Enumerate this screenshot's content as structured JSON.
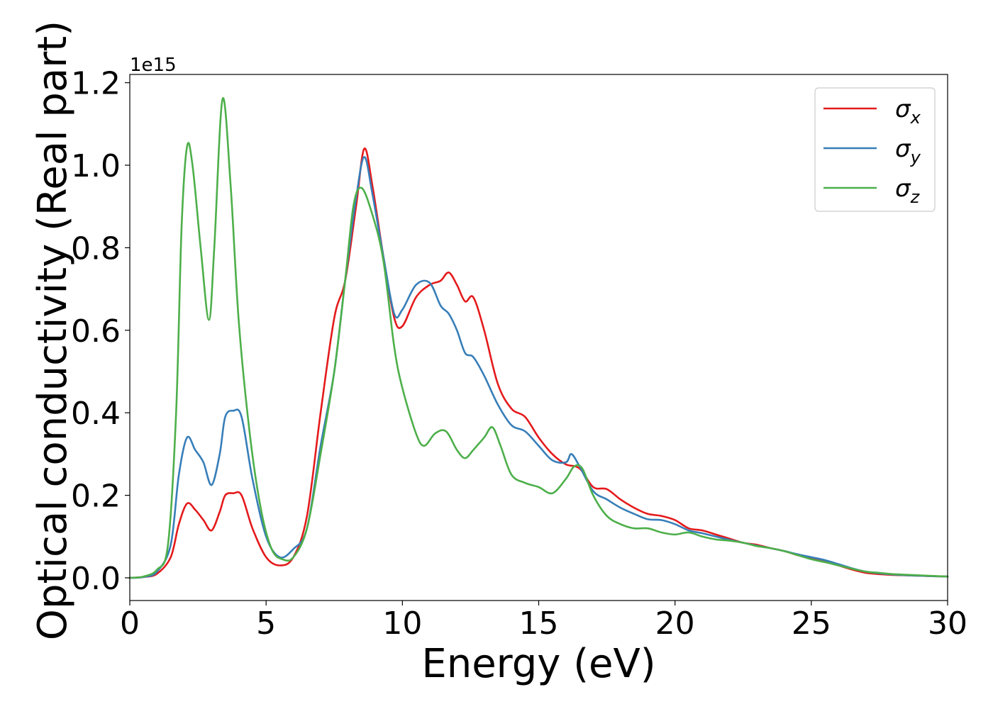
{
  "chart_data": {
    "type": "line",
    "xlabel": "Energy (eV)",
    "ylabel": "Optical conductivity (Real part)",
    "offset_text": "1e15",
    "xlim": [
      0,
      30
    ],
    "ylim": [
      -0.055,
      1.22
    ],
    "x_ticks": [
      0,
      5,
      10,
      15,
      20,
      25,
      30
    ],
    "x_tick_labels": [
      "0",
      "5",
      "10",
      "15",
      "20",
      "25",
      "30"
    ],
    "y_ticks": [
      0.0,
      0.2,
      0.4,
      0.6,
      0.8,
      1.0,
      1.2
    ],
    "y_tick_labels": [
      "0.0",
      "0.2",
      "0.4",
      "0.6",
      "0.8",
      "1.0",
      "1.2"
    ],
    "grid": false,
    "legend_position": "top-right",
    "series": [
      {
        "name": "σ",
        "subscript": "x",
        "color": "#e41a1c",
        "points": [
          [
            0,
            0
          ],
          [
            0.5,
            0.002
          ],
          [
            1,
            0.01
          ],
          [
            1.5,
            0.05
          ],
          [
            1.8,
            0.13
          ],
          [
            2.1,
            0.18
          ],
          [
            2.4,
            0.165
          ],
          [
            2.7,
            0.14
          ],
          [
            3.0,
            0.115
          ],
          [
            3.3,
            0.16
          ],
          [
            3.5,
            0.2
          ],
          [
            3.8,
            0.205
          ],
          [
            4.1,
            0.2
          ],
          [
            4.5,
            0.12
          ],
          [
            5.0,
            0.05
          ],
          [
            5.5,
            0.03
          ],
          [
            6.0,
            0.05
          ],
          [
            6.5,
            0.15
          ],
          [
            7.0,
            0.4
          ],
          [
            7.5,
            0.63
          ],
          [
            7.9,
            0.72
          ],
          [
            8.3,
            0.9
          ],
          [
            8.6,
            1.04
          ],
          [
            8.9,
            0.95
          ],
          [
            9.3,
            0.78
          ],
          [
            9.7,
            0.63
          ],
          [
            10.0,
            0.61
          ],
          [
            10.5,
            0.68
          ],
          [
            11.0,
            0.71
          ],
          [
            11.4,
            0.72
          ],
          [
            11.7,
            0.74
          ],
          [
            12.0,
            0.71
          ],
          [
            12.3,
            0.67
          ],
          [
            12.6,
            0.68
          ],
          [
            13.0,
            0.6
          ],
          [
            13.5,
            0.47
          ],
          [
            14.0,
            0.41
          ],
          [
            14.5,
            0.39
          ],
          [
            15.0,
            0.34
          ],
          [
            15.5,
            0.3
          ],
          [
            16.0,
            0.275
          ],
          [
            16.5,
            0.265
          ],
          [
            17.0,
            0.22
          ],
          [
            17.5,
            0.215
          ],
          [
            18.0,
            0.19
          ],
          [
            18.5,
            0.17
          ],
          [
            19.0,
            0.155
          ],
          [
            19.5,
            0.15
          ],
          [
            20.0,
            0.14
          ],
          [
            20.5,
            0.12
          ],
          [
            21.0,
            0.115
          ],
          [
            21.5,
            0.105
          ],
          [
            22.0,
            0.095
          ],
          [
            22.5,
            0.085
          ],
          [
            23.0,
            0.08
          ],
          [
            23.5,
            0.072
          ],
          [
            24.0,
            0.065
          ],
          [
            24.5,
            0.055
          ],
          [
            25.0,
            0.047
          ],
          [
            25.5,
            0.04
          ],
          [
            26.0,
            0.03
          ],
          [
            26.5,
            0.02
          ],
          [
            27.0,
            0.012
          ],
          [
            27.5,
            0.009
          ],
          [
            28.0,
            0.007
          ],
          [
            29.0,
            0.005
          ],
          [
            30.0,
            0.003
          ]
        ]
      },
      {
        "name": "σ",
        "subscript": "y",
        "color": "#377eb8",
        "points": [
          [
            0,
            0
          ],
          [
            0.5,
            0.002
          ],
          [
            1,
            0.015
          ],
          [
            1.5,
            0.08
          ],
          [
            1.8,
            0.25
          ],
          [
            2.1,
            0.34
          ],
          [
            2.4,
            0.31
          ],
          [
            2.7,
            0.28
          ],
          [
            3.0,
            0.225
          ],
          [
            3.3,
            0.3
          ],
          [
            3.5,
            0.39
          ],
          [
            3.8,
            0.405
          ],
          [
            4.1,
            0.39
          ],
          [
            4.5,
            0.24
          ],
          [
            5.0,
            0.1
          ],
          [
            5.5,
            0.05
          ],
          [
            6.0,
            0.07
          ],
          [
            6.5,
            0.12
          ],
          [
            7.0,
            0.32
          ],
          [
            7.5,
            0.5
          ],
          [
            7.9,
            0.72
          ],
          [
            8.3,
            0.92
          ],
          [
            8.6,
            1.02
          ],
          [
            8.9,
            0.93
          ],
          [
            9.3,
            0.78
          ],
          [
            9.7,
            0.64
          ],
          [
            10.0,
            0.65
          ],
          [
            10.5,
            0.71
          ],
          [
            11.0,
            0.715
          ],
          [
            11.4,
            0.66
          ],
          [
            11.7,
            0.64
          ],
          [
            12.0,
            0.6
          ],
          [
            12.3,
            0.545
          ],
          [
            12.6,
            0.535
          ],
          [
            13.0,
            0.49
          ],
          [
            13.5,
            0.42
          ],
          [
            14.0,
            0.37
          ],
          [
            14.5,
            0.355
          ],
          [
            15.0,
            0.32
          ],
          [
            15.5,
            0.285
          ],
          [
            16.0,
            0.28
          ],
          [
            16.2,
            0.3
          ],
          [
            16.5,
            0.27
          ],
          [
            17.0,
            0.21
          ],
          [
            17.5,
            0.19
          ],
          [
            18.0,
            0.17
          ],
          [
            18.5,
            0.155
          ],
          [
            19.0,
            0.142
          ],
          [
            19.5,
            0.14
          ],
          [
            20.0,
            0.13
          ],
          [
            20.5,
            0.115
          ],
          [
            21.0,
            0.108
          ],
          [
            21.5,
            0.1
          ],
          [
            22.0,
            0.092
          ],
          [
            22.5,
            0.085
          ],
          [
            23.0,
            0.078
          ],
          [
            23.5,
            0.072
          ],
          [
            24.0,
            0.065
          ],
          [
            24.5,
            0.057
          ],
          [
            25.0,
            0.05
          ],
          [
            25.5,
            0.043
          ],
          [
            26.0,
            0.033
          ],
          [
            26.5,
            0.023
          ],
          [
            27.0,
            0.015
          ],
          [
            27.5,
            0.011
          ],
          [
            28.0,
            0.008
          ],
          [
            29.0,
            0.005
          ],
          [
            30.0,
            0.003
          ]
        ]
      },
      {
        "name": "σ",
        "subscript": "z",
        "color": "#4daf4a",
        "points": [
          [
            0,
            0
          ],
          [
            0.5,
            0.003
          ],
          [
            1,
            0.02
          ],
          [
            1.4,
            0.08
          ],
          [
            1.7,
            0.4
          ],
          [
            1.9,
            0.85
          ],
          [
            2.1,
            1.045
          ],
          [
            2.3,
            1.0
          ],
          [
            2.6,
            0.8
          ],
          [
            2.9,
            0.625
          ],
          [
            3.1,
            0.8
          ],
          [
            3.4,
            1.16
          ],
          [
            3.7,
            0.95
          ],
          [
            4.0,
            0.62
          ],
          [
            4.4,
            0.35
          ],
          [
            4.8,
            0.17
          ],
          [
            5.2,
            0.07
          ],
          [
            5.6,
            0.045
          ],
          [
            6.0,
            0.05
          ],
          [
            6.5,
            0.12
          ],
          [
            7.0,
            0.3
          ],
          [
            7.5,
            0.5
          ],
          [
            7.9,
            0.72
          ],
          [
            8.2,
            0.9
          ],
          [
            8.5,
            0.945
          ],
          [
            8.9,
            0.88
          ],
          [
            9.3,
            0.77
          ],
          [
            9.7,
            0.56
          ],
          [
            10.0,
            0.46
          ],
          [
            10.5,
            0.35
          ],
          [
            10.8,
            0.32
          ],
          [
            11.2,
            0.35
          ],
          [
            11.6,
            0.355
          ],
          [
            12.0,
            0.31
          ],
          [
            12.3,
            0.29
          ],
          [
            12.6,
            0.31
          ],
          [
            13.0,
            0.34
          ],
          [
            13.3,
            0.365
          ],
          [
            13.6,
            0.32
          ],
          [
            14.0,
            0.25
          ],
          [
            14.5,
            0.23
          ],
          [
            15.0,
            0.22
          ],
          [
            15.5,
            0.205
          ],
          [
            16.0,
            0.24
          ],
          [
            16.3,
            0.27
          ],
          [
            16.6,
            0.265
          ],
          [
            17.0,
            0.2
          ],
          [
            17.5,
            0.15
          ],
          [
            18.0,
            0.13
          ],
          [
            18.5,
            0.12
          ],
          [
            19.0,
            0.12
          ],
          [
            19.5,
            0.11
          ],
          [
            20.0,
            0.105
          ],
          [
            20.5,
            0.11
          ],
          [
            21.0,
            0.1
          ],
          [
            21.5,
            0.093
          ],
          [
            22.0,
            0.09
          ],
          [
            22.5,
            0.085
          ],
          [
            23.0,
            0.077
          ],
          [
            23.5,
            0.072
          ],
          [
            24.0,
            0.065
          ],
          [
            24.5,
            0.055
          ],
          [
            25.0,
            0.045
          ],
          [
            25.5,
            0.038
          ],
          [
            26.0,
            0.03
          ],
          [
            26.5,
            0.022
          ],
          [
            27.0,
            0.015
          ],
          [
            27.5,
            0.012
          ],
          [
            28.0,
            0.009
          ],
          [
            29.0,
            0.006
          ],
          [
            30.0,
            0.003
          ]
        ]
      }
    ]
  }
}
